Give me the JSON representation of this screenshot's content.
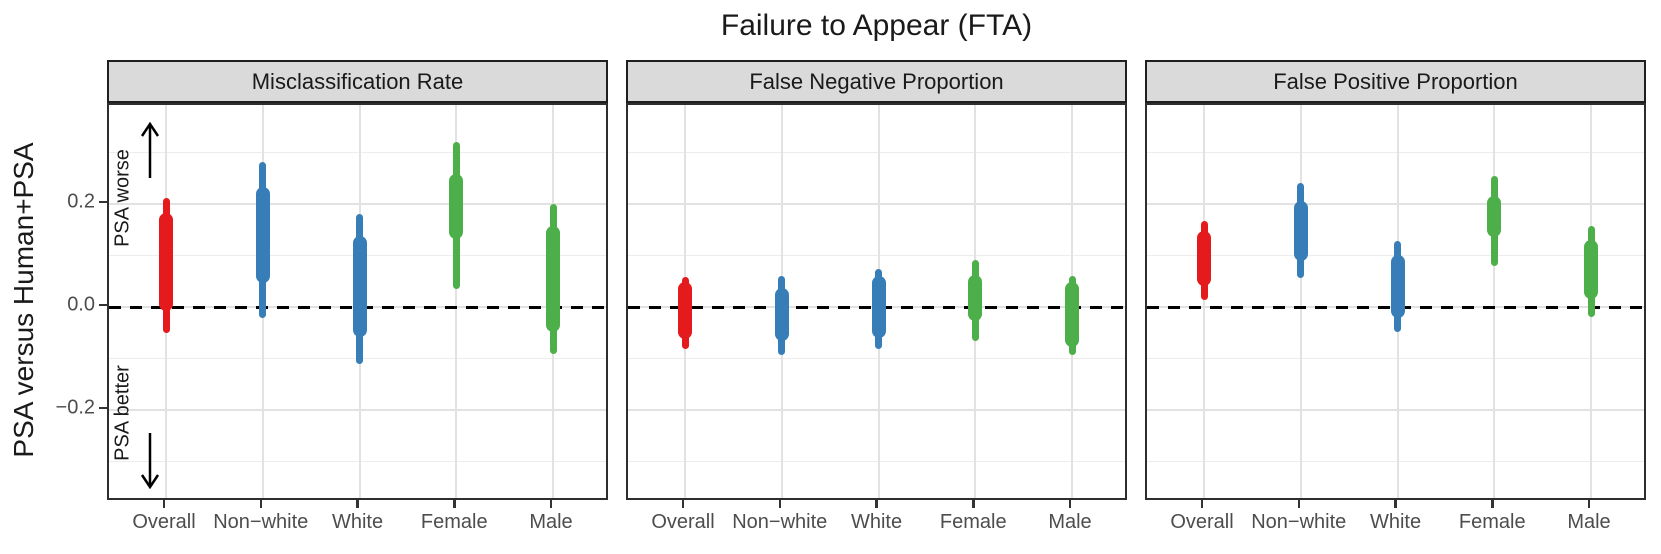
{
  "title": "Failure to Appear (FTA)",
  "y_axis": {
    "label": "PSA versus Human+PSA",
    "tick_labels": [
      "0.2",
      "0.0",
      "−0.2"
    ],
    "tick_values": [
      0.2,
      0.0,
      -0.2
    ]
  },
  "annotations": {
    "worse_label": "PSA worse",
    "worse_icon": "up-arrow-icon",
    "better_label": "PSA better",
    "better_icon": "down-arrow-icon"
  },
  "colors": {
    "overall": "#E41A1C",
    "race": "#377EB8",
    "sex": "#4DAF4A",
    "strip_background": "#DADADA",
    "panel_border": "#2E2E2E",
    "grid_major": "#E2E2E2",
    "grid_minor": "#EDEDED",
    "reference_line": "#000000",
    "axis_text": "#4D4D4D"
  },
  "chart_data": {
    "type": "interval",
    "subtype": "two-level intervals: thick bar = inner interval, thin bar = outer interval, per facet",
    "title": "Failure to Appear (FTA)",
    "ylabel": "PSA versus Human+PSA",
    "xlabel": "",
    "categories": [
      "Overall",
      "Non−white",
      "White",
      "Female",
      "Male"
    ],
    "category_colors": {
      "Overall": "#E41A1C",
      "Non−white": "#377EB8",
      "White": "#377EB8",
      "Female": "#4DAF4A",
      "Male": "#4DAF4A"
    },
    "ylim": [
      -0.379,
      0.392
    ],
    "y_major_ticks": [
      0.2,
      0.0,
      -0.2
    ],
    "y_minor_gridlines": [
      0.3,
      0.1,
      -0.1,
      -0.3
    ],
    "reference_line_y": 0.0,
    "grid": true,
    "legend": "none",
    "panels": [
      {
        "label": "Misclassification Rate",
        "intervals": [
          {
            "category": "Overall",
            "outer_low": -0.045,
            "inner_low": 0.0,
            "inner_high": 0.175,
            "outer_high": 0.205
          },
          {
            "category": "Non−white",
            "outer_low": -0.015,
            "inner_low": 0.055,
            "inner_high": 0.225,
            "outer_high": 0.275
          },
          {
            "category": "White",
            "outer_low": -0.105,
            "inner_low": -0.05,
            "inner_high": 0.13,
            "outer_high": 0.175
          },
          {
            "category": "Female",
            "outer_low": 0.04,
            "inner_low": 0.14,
            "inner_high": 0.25,
            "outer_high": 0.315
          },
          {
            "category": "Male",
            "outer_low": -0.085,
            "inner_low": -0.04,
            "inner_high": 0.15,
            "outer_high": 0.195
          }
        ]
      },
      {
        "label": "False Negative Proportion",
        "intervals": [
          {
            "category": "Overall",
            "outer_low": -0.075,
            "inner_low": -0.055,
            "inner_high": 0.04,
            "outer_high": 0.053
          },
          {
            "category": "Non−white",
            "outer_low": -0.088,
            "inner_low": -0.058,
            "inner_high": 0.03,
            "outer_high": 0.055
          },
          {
            "category": "White",
            "outer_low": -0.075,
            "inner_low": -0.053,
            "inner_high": 0.052,
            "outer_high": 0.068
          },
          {
            "category": "Female",
            "outer_low": -0.06,
            "inner_low": -0.02,
            "inner_high": 0.055,
            "outer_high": 0.085
          },
          {
            "category": "Male",
            "outer_low": -0.088,
            "inner_low": -0.07,
            "inner_high": 0.04,
            "outer_high": 0.055
          }
        ]
      },
      {
        "label": "False Positive Proportion",
        "intervals": [
          {
            "category": "Overall",
            "outer_low": 0.019,
            "inner_low": 0.049,
            "inner_high": 0.14,
            "outer_high": 0.162
          },
          {
            "category": "Non−white",
            "outer_low": 0.063,
            "inner_low": 0.098,
            "inner_high": 0.199,
            "outer_high": 0.235
          },
          {
            "category": "White",
            "outer_low": -0.042,
            "inner_low": -0.013,
            "inner_high": 0.094,
            "outer_high": 0.123
          },
          {
            "category": "Female",
            "outer_low": 0.085,
            "inner_low": 0.144,
            "inner_high": 0.207,
            "outer_high": 0.248
          },
          {
            "category": "Male",
            "outer_low": -0.013,
            "inner_low": 0.023,
            "inner_high": 0.123,
            "outer_high": 0.152
          }
        ]
      }
    ]
  }
}
